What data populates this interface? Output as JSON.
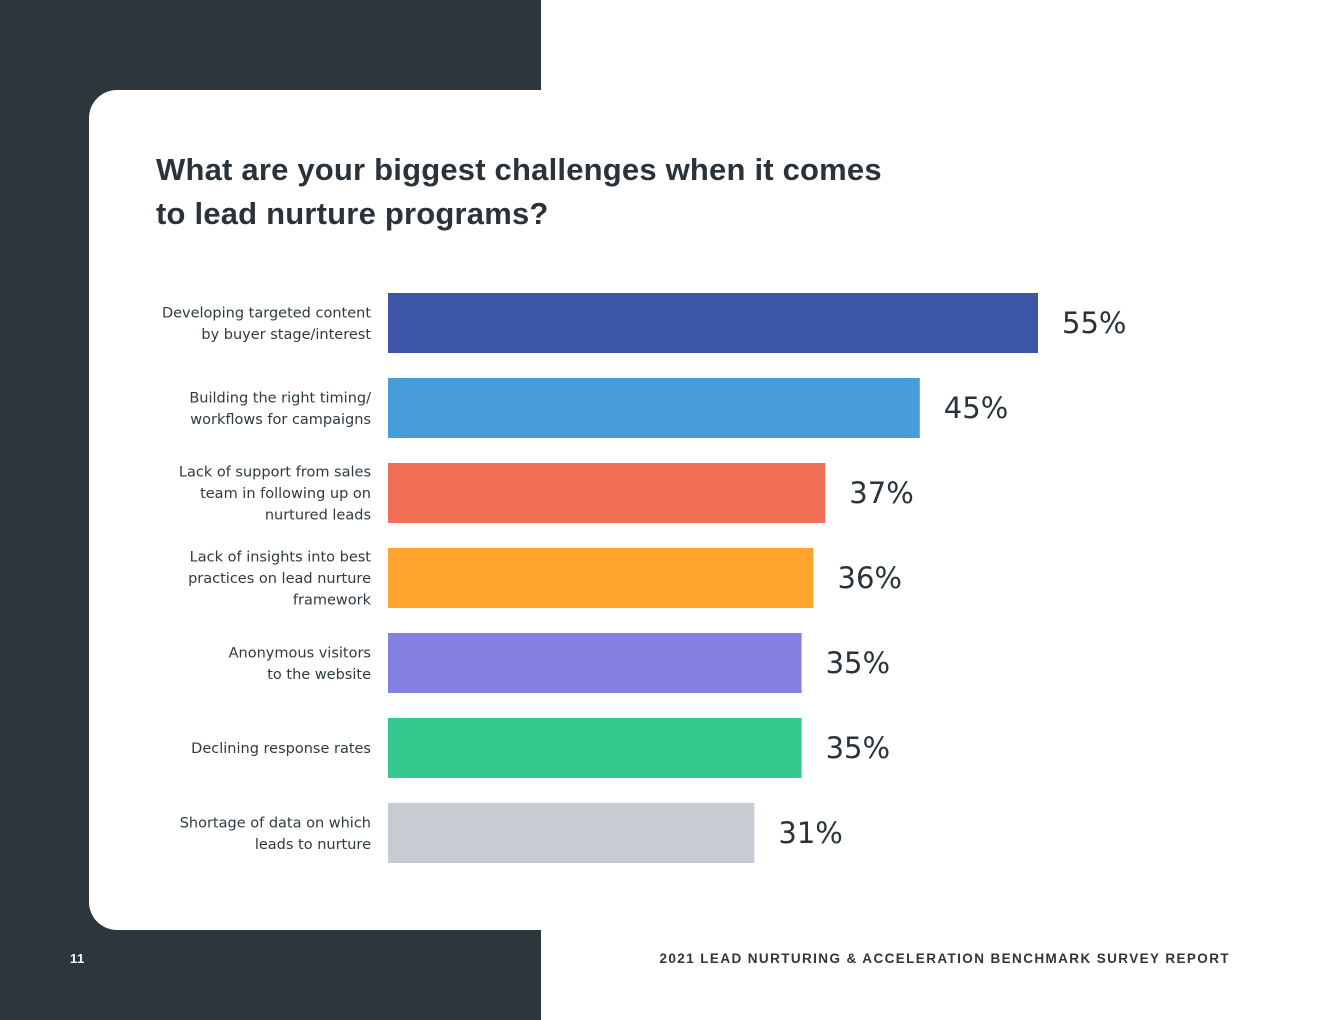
{
  "page": {
    "title_lines": [
      "What are your biggest challenges when it comes",
      "to lead nurture programs?"
    ],
    "page_number": "11",
    "report_title": "2021 LEAD NURTURING & ACCELERATION BENCHMARK SURVEY REPORT"
  },
  "colors": {
    "dark_panel": "#2d363d",
    "text": "#2a333a"
  },
  "chart_data": {
    "type": "bar",
    "orientation": "horizontal",
    "title": "What are your biggest challenges when it comes to lead nurture programs?",
    "xlim": [
      0,
      100
    ],
    "grid": false,
    "legend": false,
    "categories": [
      [
        "Developing targeted content",
        "by buyer stage/interest"
      ],
      [
        "Building the right timing/",
        "workflows for campaigns"
      ],
      [
        "Lack of support from sales",
        "team in following up on",
        "nurtured leads"
      ],
      [
        "Lack of insights into best",
        "practices on lead nurture",
        "framework"
      ],
      [
        "Anonymous visitors",
        "to the website"
      ],
      [
        "Declining response rates"
      ],
      [
        "Shortage of data on which",
        "leads to nurture"
      ]
    ],
    "values": [
      55,
      45,
      37,
      36,
      35,
      35,
      31
    ],
    "value_labels": [
      "55%",
      "45%",
      "37%",
      "36%",
      "35%",
      "35%",
      "31%"
    ],
    "bar_colors": [
      "#3c55a5",
      "#479dd8",
      "#f27057",
      "#ffa52e",
      "#8380e2",
      "#33c98e",
      "#c7ccd3"
    ]
  }
}
